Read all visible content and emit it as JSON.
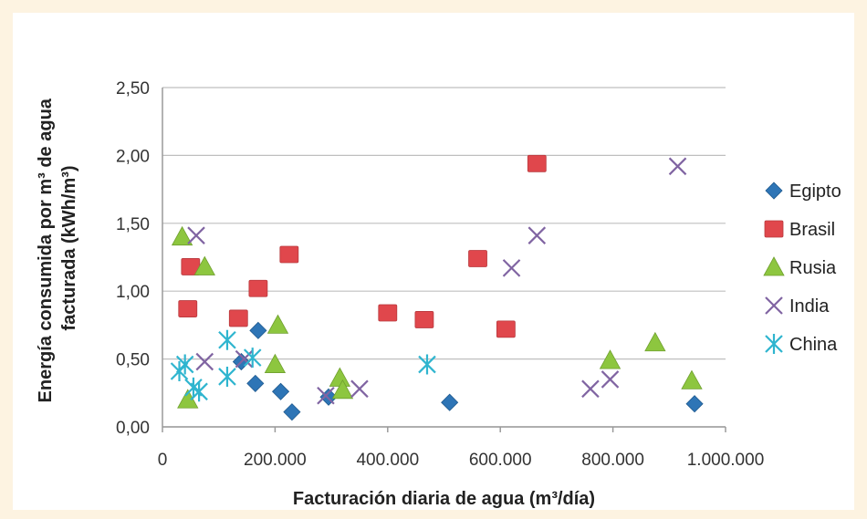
{
  "chart_data": {
    "type": "scatter",
    "title": "",
    "xlabel": "Facturación diaria de agua (m³/día)",
    "ylabel_line1": "Energía consumida por m³ de agua",
    "ylabel_line2": "facturada (kWh/m³)",
    "xlim": [
      0,
      1000000
    ],
    "ylim": [
      0,
      2.5
    ],
    "x_ticks": [
      0,
      200000,
      400000,
      600000,
      800000,
      1000000
    ],
    "x_tick_labels": [
      "0",
      "200.000",
      "400.000",
      "600.000",
      "800.000",
      "1.000.000"
    ],
    "y_ticks": [
      0,
      0.5,
      1.0,
      1.5,
      2.0,
      2.5
    ],
    "y_tick_labels": [
      "0,00",
      "0,50",
      "1,00",
      "1,50",
      "2,00",
      "2,50"
    ],
    "grid": "horizontal",
    "legend_position": "right",
    "series": [
      {
        "name": "Egipto",
        "marker": "diamond",
        "color": "#2e75b6",
        "points": [
          [
            140000,
            0.48
          ],
          [
            170000,
            0.71
          ],
          [
            165000,
            0.32
          ],
          [
            210000,
            0.26
          ],
          [
            230000,
            0.11
          ],
          [
            295000,
            0.22
          ],
          [
            510000,
            0.18
          ],
          [
            945000,
            0.17
          ]
        ]
      },
      {
        "name": "Brasil",
        "marker": "square",
        "color": "#e0474c",
        "points": [
          [
            45000,
            0.87
          ],
          [
            50000,
            1.18
          ],
          [
            135000,
            0.8
          ],
          [
            170000,
            1.02
          ],
          [
            225000,
            1.27
          ],
          [
            400000,
            0.84
          ],
          [
            465000,
            0.79
          ],
          [
            560000,
            1.24
          ],
          [
            610000,
            0.72
          ],
          [
            665000,
            1.94
          ]
        ]
      },
      {
        "name": "Rusia",
        "marker": "triangle",
        "color": "#8dc63f",
        "points": [
          [
            35000,
            1.4
          ],
          [
            75000,
            1.18
          ],
          [
            45000,
            0.2
          ],
          [
            200000,
            0.46
          ],
          [
            205000,
            0.75
          ],
          [
            315000,
            0.36
          ],
          [
            320000,
            0.27
          ],
          [
            795000,
            0.49
          ],
          [
            875000,
            0.62
          ],
          [
            940000,
            0.34
          ]
        ]
      },
      {
        "name": "India",
        "marker": "x",
        "color": "#8064a2",
        "points": [
          [
            60000,
            1.41
          ],
          [
            75000,
            0.48
          ],
          [
            145000,
            0.5
          ],
          [
            290000,
            0.23
          ],
          [
            350000,
            0.28
          ],
          [
            620000,
            1.17
          ],
          [
            665000,
            1.41
          ],
          [
            760000,
            0.28
          ],
          [
            795000,
            0.35
          ],
          [
            915000,
            1.92
          ]
        ]
      },
      {
        "name": "China",
        "marker": "asterisk",
        "color": "#2fb5cf",
        "points": [
          [
            30000,
            0.41
          ],
          [
            40000,
            0.46
          ],
          [
            55000,
            0.29
          ],
          [
            65000,
            0.26
          ],
          [
            115000,
            0.64
          ],
          [
            115000,
            0.37
          ],
          [
            160000,
            0.51
          ],
          [
            470000,
            0.46
          ]
        ]
      }
    ]
  }
}
